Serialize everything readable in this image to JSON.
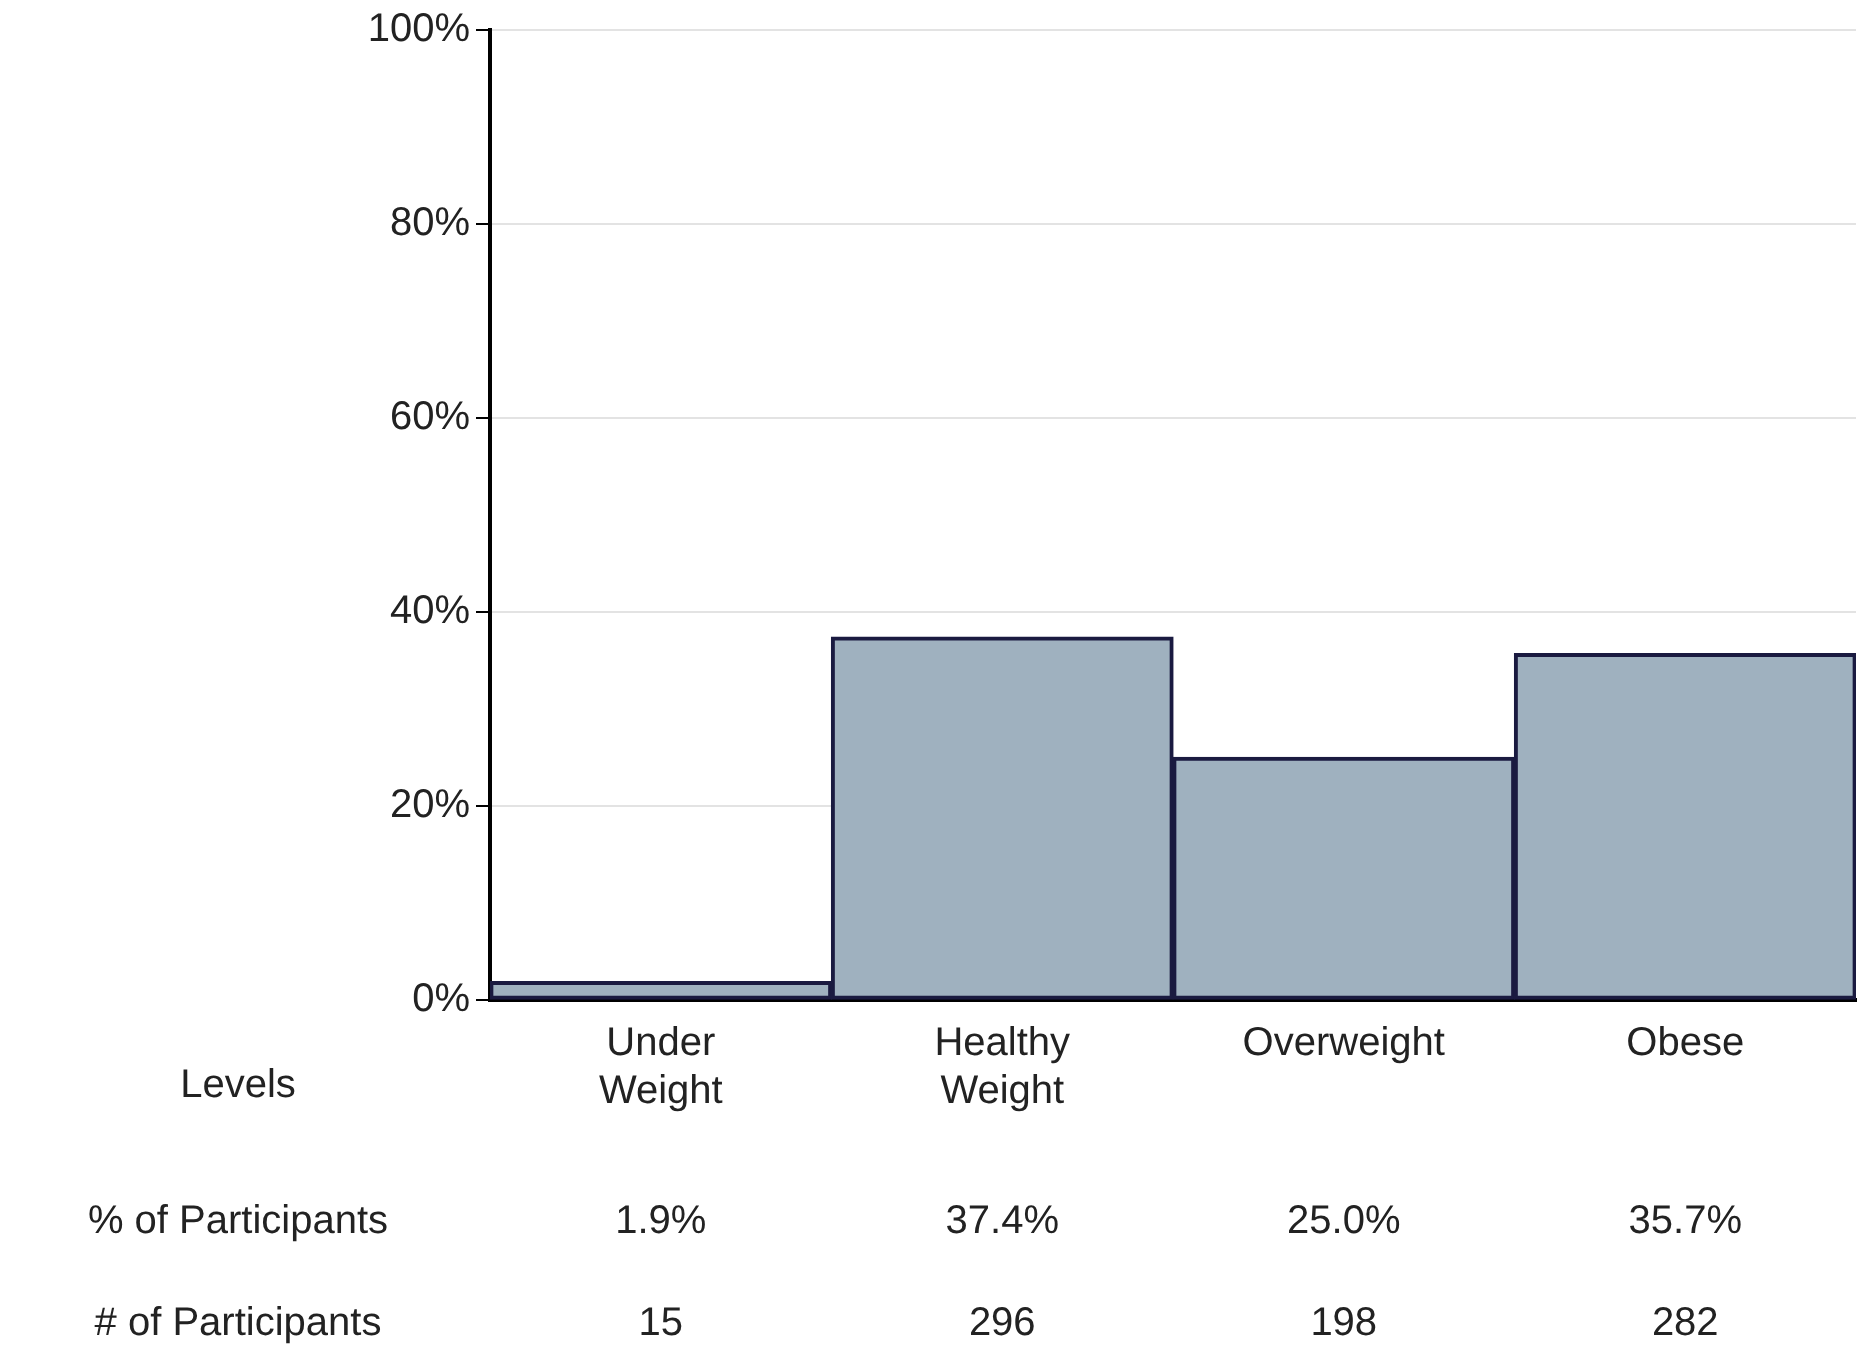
{
  "chart_data": {
    "type": "bar",
    "categories": [
      "Under Weight",
      "Healthy Weight",
      "Overweight",
      "Obese"
    ],
    "values": [
      1.9,
      37.4,
      25.0,
      35.7
    ],
    "color": "#9fb1bf",
    "value_labels": [
      "1.9%",
      "37.4%",
      "25.0%",
      "35.7%"
    ],
    "ylim": [
      0,
      100
    ],
    "yticks": [
      {
        "value": 0,
        "label": "0%"
      },
      {
        "value": 20,
        "label": "20%"
      },
      {
        "value": 40,
        "label": "40%"
      },
      {
        "value": 60,
        "label": "60%"
      },
      {
        "value": 80,
        "label": "80%"
      },
      {
        "value": 100,
        "label": "100%"
      }
    ],
    "grid": "y",
    "legend": false,
    "annotations": [
      "Levels",
      "% of Participants",
      "# of Participants",
      "15",
      "296",
      "198",
      "282"
    ]
  }
}
